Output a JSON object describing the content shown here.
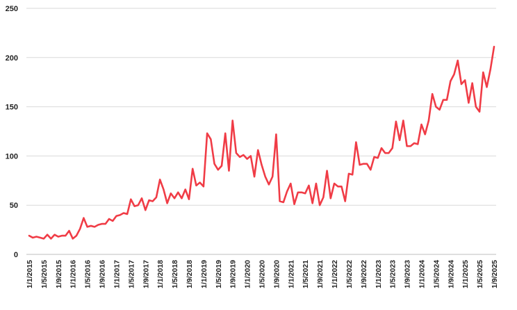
{
  "chart_data": {
    "type": "line",
    "title": "",
    "xlabel": "",
    "ylabel": "",
    "ylim": [
      0,
      250
    ],
    "yticks": [
      0,
      50,
      100,
      150,
      200,
      250
    ],
    "grid": true,
    "legend": "none",
    "xtick_labels": [
      "1/1/2015",
      "1/5/2015",
      "1/9/2015",
      "1/1/2016",
      "1/5/2016",
      "1/9/2016",
      "1/1/2017",
      "1/5/2017",
      "1/9/2017",
      "1/1/2018",
      "1/5/2018",
      "1/9/2018",
      "1/1/2019",
      "1/5/2019",
      "1/9/2019",
      "1/1/2020",
      "1/5/2020",
      "1/9/2020",
      "1/1/2021",
      "1/5/2021",
      "1/9/2021",
      "1/1/2022",
      "1/5/2022",
      "1/9/2022",
      "1/1/2023",
      "1/5/2023",
      "1/9/2023",
      "1/1/2024",
      "1/5/2024",
      "1/9/2024",
      "1/1/2025",
      "1/5/2025",
      "1/9/2025"
    ],
    "series": [
      {
        "color": "#f03c46",
        "values": [
          19,
          17,
          18,
          17,
          16,
          20,
          16,
          20,
          18,
          19,
          19,
          24,
          16,
          19,
          26,
          37,
          28,
          29,
          28,
          30,
          31,
          31,
          36,
          34,
          39,
          40,
          42,
          41,
          56,
          49,
          50,
          57,
          45,
          55,
          54,
          58,
          76,
          66,
          52,
          62,
          57,
          63,
          57,
          66,
          56,
          87,
          70,
          73,
          69,
          123,
          117,
          92,
          86,
          90,
          123,
          85,
          136,
          103,
          99,
          101,
          97,
          100,
          79,
          106,
          91,
          79,
          71,
          79,
          122,
          54,
          53,
          64,
          72,
          51,
          63,
          63,
          62,
          70,
          52,
          72,
          50,
          58,
          85,
          57,
          72,
          69,
          69,
          54,
          82,
          81,
          114,
          91,
          92,
          92,
          86,
          99,
          98,
          108,
          103,
          103,
          108,
          135,
          116,
          136,
          110,
          110,
          113,
          112,
          132,
          122,
          136,
          163,
          150,
          147,
          157,
          157,
          176,
          183,
          197,
          173,
          177,
          154,
          174,
          150,
          145,
          185,
          170,
          188,
          211
        ]
      }
    ]
  }
}
